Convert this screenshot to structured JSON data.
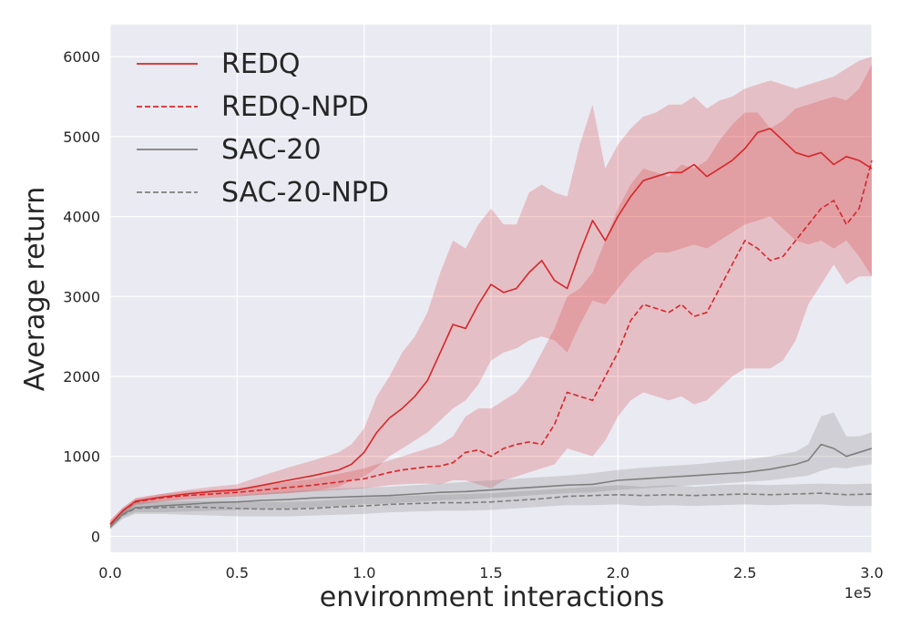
{
  "chart_data": {
    "type": "line",
    "xlabel": "environment interactions",
    "ylabel": "Average return",
    "x_offset_text": "1e5",
    "xlim": [
      0,
      3.0
    ],
    "ylim": [
      -200,
      6400
    ],
    "x_ticks": [
      "0.0",
      "0.5",
      "1.0",
      "1.5",
      "2.0",
      "2.5",
      "3.0"
    ],
    "y_ticks": [
      "0",
      "1000",
      "2000",
      "3000",
      "4000",
      "5000",
      "6000"
    ],
    "grid": true,
    "legend_position": "top-left",
    "background": "#eaeaf2",
    "series": [
      {
        "name": "REDQ",
        "color": "#d62728",
        "dash": "solid",
        "x": [
          0,
          0.05,
          0.1,
          0.2,
          0.3,
          0.4,
          0.5,
          0.6,
          0.7,
          0.8,
          0.9,
          0.95,
          1.0,
          1.05,
          1.1,
          1.15,
          1.2,
          1.25,
          1.3,
          1.35,
          1.4,
          1.45,
          1.5,
          1.55,
          1.6,
          1.65,
          1.7,
          1.75,
          1.8,
          1.85,
          1.9,
          1.95,
          2.0,
          2.05,
          2.1,
          2.15,
          2.2,
          2.25,
          2.3,
          2.35,
          2.4,
          2.45,
          2.5,
          2.55,
          2.6,
          2.65,
          2.7,
          2.75,
          2.8,
          2.85,
          2.9,
          2.95,
          3.0
        ],
        "values": [
          150,
          320,
          440,
          490,
          530,
          560,
          580,
          640,
          700,
          760,
          830,
          900,
          1050,
          1300,
          1480,
          1600,
          1750,
          1950,
          2300,
          2650,
          2600,
          2900,
          3150,
          3050,
          3100,
          3300,
          3450,
          3200,
          3100,
          3550,
          3950,
          3700,
          4000,
          4250,
          4450,
          4500,
          4550,
          4550,
          4650,
          4500,
          4600,
          4700,
          4850,
          5050,
          5100,
          4950,
          4800,
          4750,
          4800,
          4650,
          4750,
          4700,
          4600
        ],
        "band_lower": [
          100,
          280,
          400,
          440,
          470,
          490,
          500,
          520,
          540,
          570,
          620,
          700,
          750,
          860,
          1000,
          1100,
          1200,
          1300,
          1450,
          1600,
          1700,
          1900,
          2200,
          2300,
          2350,
          2450,
          2500,
          2450,
          2300,
          2650,
          2950,
          2900,
          3100,
          3300,
          3450,
          3550,
          3550,
          3600,
          3650,
          3600,
          3700,
          3800,
          3900,
          3950,
          4000,
          3850,
          3700,
          3650,
          3700,
          3600,
          3700,
          3500,
          3250
        ],
        "band_upper": [
          200,
          360,
          480,
          530,
          580,
          620,
          650,
          760,
          860,
          950,
          1050,
          1150,
          1350,
          1750,
          2000,
          2300,
          2500,
          2800,
          3300,
          3700,
          3600,
          3900,
          4100,
          3900,
          3900,
          4300,
          4400,
          4300,
          4250,
          4900,
          5400,
          4600,
          4900,
          5100,
          5250,
          5300,
          5400,
          5400,
          5500,
          5350,
          5450,
          5500,
          5600,
          5650,
          5700,
          5650,
          5600,
          5650,
          5700,
          5750,
          5850,
          5950,
          6000
        ]
      },
      {
        "name": "REDQ-NPD",
        "color": "#d62728",
        "dash": "dashed",
        "x": [
          0,
          0.05,
          0.1,
          0.2,
          0.3,
          0.4,
          0.5,
          0.6,
          0.7,
          0.8,
          0.9,
          1.0,
          1.05,
          1.1,
          1.15,
          1.2,
          1.25,
          1.3,
          1.35,
          1.4,
          1.45,
          1.5,
          1.55,
          1.6,
          1.65,
          1.7,
          1.75,
          1.8,
          1.85,
          1.9,
          1.95,
          2.0,
          2.05,
          2.1,
          2.15,
          2.2,
          2.25,
          2.3,
          2.35,
          2.4,
          2.45,
          2.5,
          2.55,
          2.6,
          2.65,
          2.7,
          2.75,
          2.8,
          2.85,
          2.9,
          2.95,
          3.0
        ],
        "values": [
          150,
          320,
          430,
          480,
          510,
          530,
          550,
          580,
          610,
          640,
          680,
          720,
          760,
          800,
          830,
          850,
          870,
          880,
          920,
          1050,
          1080,
          1000,
          1100,
          1150,
          1180,
          1150,
          1400,
          1800,
          1750,
          1700,
          2000,
          2300,
          2700,
          2900,
          2850,
          2800,
          2900,
          2750,
          2800,
          3100,
          3400,
          3700,
          3600,
          3450,
          3500,
          3700,
          3900,
          4100,
          4200,
          3900,
          4100,
          4700
        ],
        "band_lower": [
          100,
          280,
          390,
          430,
          460,
          480,
          500,
          520,
          540,
          560,
          580,
          600,
          620,
          640,
          650,
          660,
          660,
          650,
          700,
          700,
          650,
          600,
          700,
          750,
          800,
          850,
          900,
          1100,
          1050,
          1000,
          1200,
          1500,
          1700,
          1800,
          1750,
          1700,
          1750,
          1650,
          1700,
          1850,
          2000,
          2100,
          2100,
          2100,
          2200,
          2450,
          2900,
          3150,
          3400,
          3150,
          3250,
          3250
        ],
        "band_upper": [
          200,
          360,
          470,
          530,
          560,
          580,
          600,
          640,
          680,
          720,
          780,
          850,
          900,
          950,
          1000,
          1050,
          1100,
          1150,
          1250,
          1500,
          1600,
          1600,
          1700,
          1800,
          2000,
          2300,
          2600,
          3000,
          3100,
          3300,
          3700,
          4100,
          4400,
          4600,
          4550,
          4500,
          4650,
          4600,
          4700,
          4950,
          5150,
          5300,
          5300,
          5100,
          5200,
          5350,
          5400,
          5450,
          5500,
          5450,
          5600,
          5900
        ]
      },
      {
        "name": "SAC-20",
        "color": "#7f7f7f",
        "dash": "solid",
        "x": [
          0,
          0.05,
          0.1,
          0.2,
          0.3,
          0.4,
          0.5,
          0.6,
          0.7,
          0.8,
          0.9,
          1.0,
          1.1,
          1.2,
          1.3,
          1.4,
          1.5,
          1.6,
          1.7,
          1.8,
          1.9,
          2.0,
          2.1,
          2.2,
          2.3,
          2.4,
          2.5,
          2.6,
          2.7,
          2.75,
          2.8,
          2.85,
          2.9,
          2.95,
          3.0
        ],
        "values": [
          120,
          280,
          360,
          380,
          400,
          420,
          430,
          450,
          460,
          480,
          490,
          500,
          510,
          530,
          550,
          560,
          580,
          600,
          620,
          640,
          650,
          700,
          720,
          740,
          760,
          780,
          800,
          840,
          900,
          950,
          1150,
          1100,
          1000,
          1050,
          1100
        ],
        "band_lower": [
          90,
          240,
          300,
          300,
          310,
          320,
          330,
          340,
          350,
          360,
          380,
          400,
          410,
          430,
          450,
          460,
          480,
          500,
          520,
          540,
          550,
          580,
          600,
          620,
          640,
          660,
          680,
          700,
          740,
          760,
          820,
          860,
          850,
          880,
          900
        ],
        "band_upper": [
          160,
          320,
          420,
          450,
          470,
          490,
          510,
          540,
          560,
          580,
          600,
          610,
          620,
          640,
          660,
          680,
          700,
          720,
          740,
          760,
          790,
          830,
          860,
          880,
          900,
          930,
          960,
          1000,
          1060,
          1150,
          1500,
          1550,
          1250,
          1250,
          1300
        ]
      },
      {
        "name": "SAC-20-NPD",
        "color": "#7f7f7f",
        "dash": "dashed",
        "x": [
          0,
          0.05,
          0.1,
          0.2,
          0.3,
          0.4,
          0.5,
          0.6,
          0.7,
          0.8,
          0.9,
          1.0,
          1.1,
          1.2,
          1.3,
          1.4,
          1.5,
          1.6,
          1.7,
          1.8,
          1.9,
          2.0,
          2.1,
          2.2,
          2.3,
          2.4,
          2.5,
          2.6,
          2.7,
          2.8,
          2.9,
          3.0
        ],
        "values": [
          120,
          270,
          350,
          360,
          370,
          360,
          350,
          340,
          340,
          350,
          370,
          380,
          400,
          410,
          420,
          420,
          430,
          450,
          470,
          500,
          510,
          520,
          510,
          520,
          510,
          520,
          530,
          520,
          530,
          540,
          520,
          530
        ],
        "band_lower": [
          90,
          220,
          280,
          280,
          270,
          260,
          250,
          250,
          250,
          260,
          270,
          280,
          300,
          310,
          320,
          320,
          330,
          350,
          370,
          390,
          390,
          400,
          380,
          390,
          380,
          390,
          400,
          390,
          400,
          400,
          380,
          380
        ],
        "band_upper": [
          160,
          310,
          420,
          430,
          440,
          440,
          440,
          430,
          430,
          440,
          460,
          480,
          500,
          510,
          520,
          530,
          540,
          560,
          580,
          600,
          620,
          640,
          620,
          640,
          620,
          640,
          650,
          640,
          650,
          660,
          650,
          660
        ]
      }
    ]
  }
}
